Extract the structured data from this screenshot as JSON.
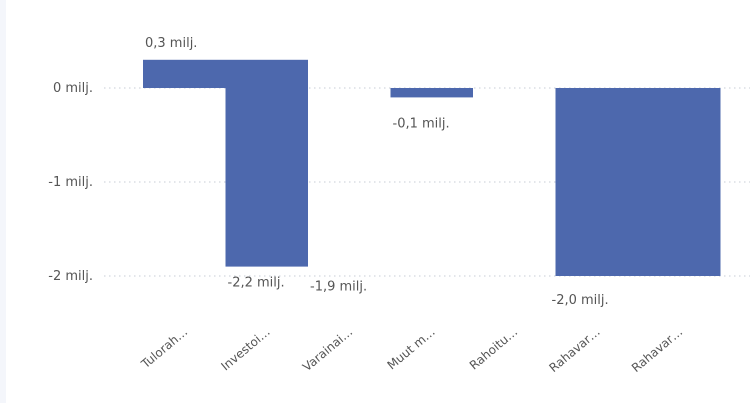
{
  "chart_data": {
    "type": "bar",
    "variant": "waterfall",
    "categories": [
      "Tulorah…",
      "Investoi…",
      "Varainai…",
      "Muut m…",
      "Rahoitu…",
      "Rahavar…",
      "Rahavar…"
    ],
    "values": [
      0.3,
      -2.2,
      -1.9,
      -0.1,
      0.0,
      -2.0,
      -2.0
    ],
    "data_labels": [
      "0,3 milj.",
      "-2,2 milj.",
      "-1,9 milj.",
      "-0,1 milj.",
      "",
      "-2,0 milj.",
      ""
    ],
    "y_ticks": [
      {
        "value": 0,
        "label": "0 milj."
      },
      {
        "value": -1,
        "label": "-1 milj."
      },
      {
        "value": -2,
        "label": "-2 milj."
      }
    ],
    "ylim": [
      -2.2,
      0.3
    ],
    "grid": true,
    "legend": "none",
    "title": "",
    "xlabel": "",
    "ylabel": "",
    "colors": {
      "bar": "#4d68ad",
      "grid": "#c7ccd6",
      "text": "#555555",
      "background": "#ffffff"
    }
  }
}
